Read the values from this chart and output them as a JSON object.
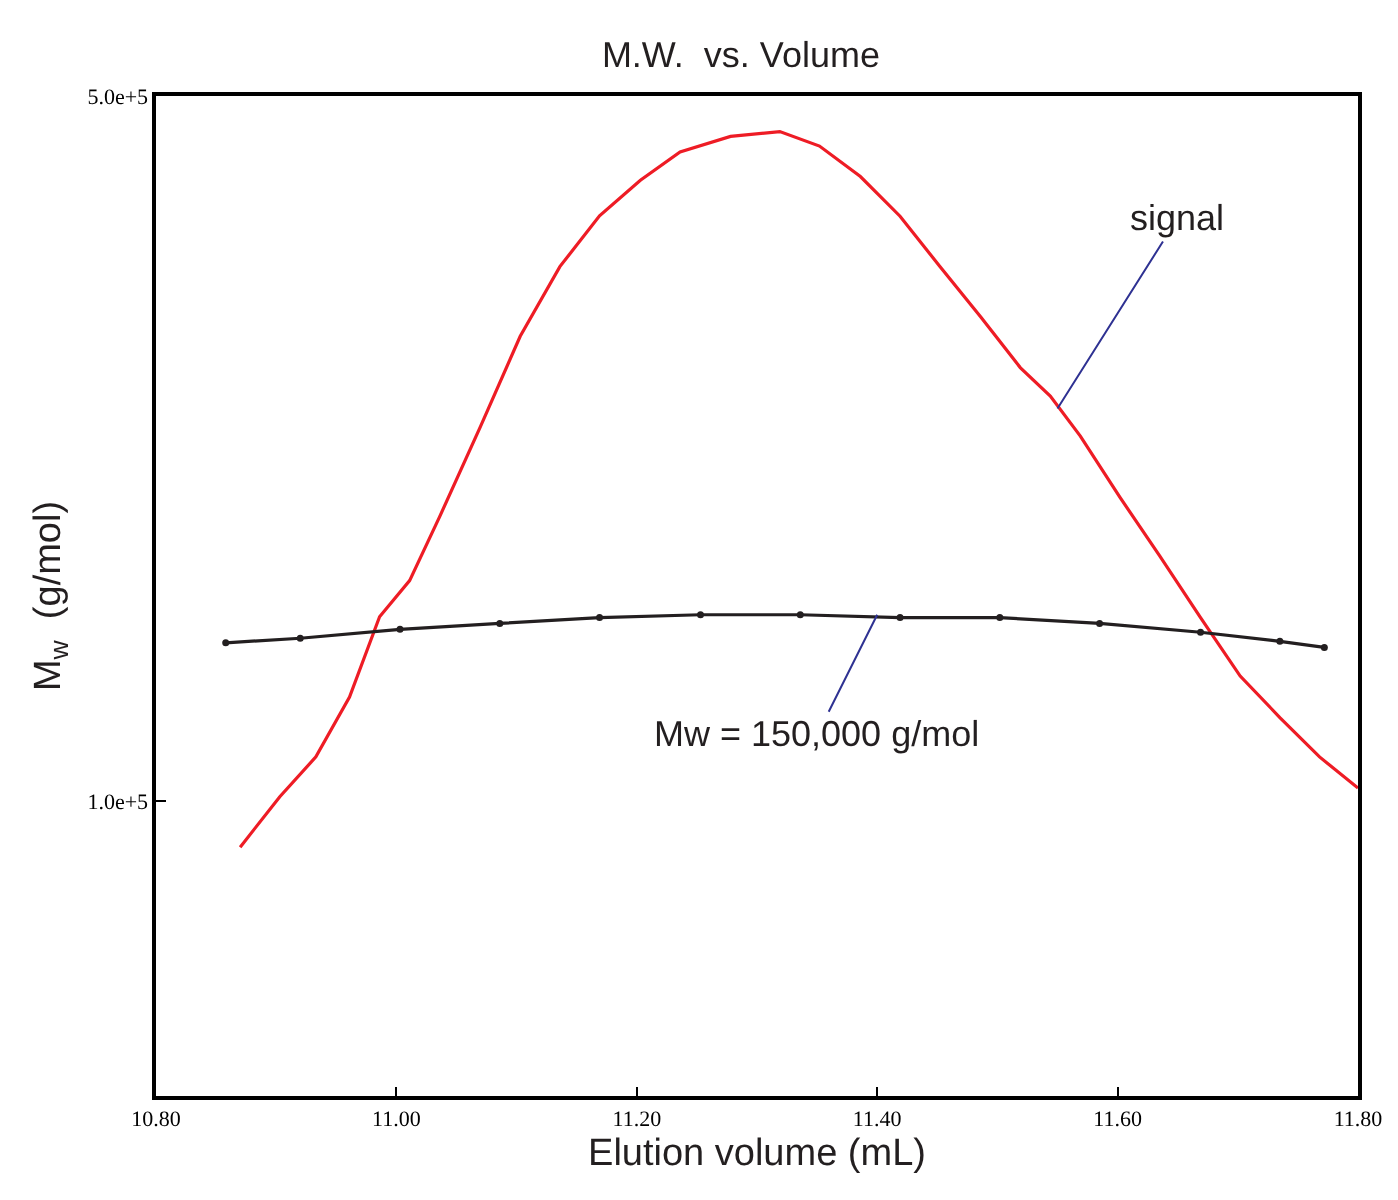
{
  "chart_data": {
    "type": "line",
    "title": "M.W.  vs. Volume",
    "xlabel": "Elution volume (mL)",
    "ylabel": "M$_{w}$  (g/mol)",
    "log": "y",
    "grid": false,
    "xlim": [
      10.8,
      11.8
    ],
    "xticks": [
      {
        "value": 10.8,
        "label": "10.80"
      },
      {
        "value": 11.0,
        "label": "11.00"
      },
      {
        "value": 11.2,
        "label": "11.20"
      },
      {
        "value": 11.4,
        "label": "11.40"
      },
      {
        "value": 11.6,
        "label": "11.60"
      },
      {
        "value": 11.8,
        "label": "11.80"
      }
    ],
    "ylim": [
      51000,
      500000
    ],
    "yticks": [
      {
        "value": 500000,
        "label": "5.0e+5"
      },
      {
        "value": 100000,
        "label": "1.0e+5"
      }
    ],
    "series": [
      {
        "color": "#ee1c25",
        "marker": "none",
        "x": [
          10.87,
          10.903,
          10.933,
          10.961,
          10.986,
          11.011,
          11.036,
          11.07,
          11.103,
          11.136,
          11.169,
          11.203,
          11.236,
          11.278,
          11.319,
          11.352,
          11.386,
          11.419,
          11.452,
          11.486,
          11.519,
          11.544,
          11.569,
          11.602,
          11.635,
          11.669,
          11.702,
          11.735,
          11.768,
          11.8
        ],
        "values": [
          90000,
          101000,
          110600,
          126800,
          152300,
          165400,
          191400,
          235200,
          288900,
          338700,
          380300,
          412500,
          440000,
          456000,
          461000,
          446000,
          416000,
          380000,
          339000,
          302000,
          269000,
          252000,
          230000,
          200000,
          175000,
          152000,
          133000,
          121000,
          110600,
          103000
        ]
      },
      {
        "color": "#231f20",
        "marker": "circle",
        "x": [
          10.858,
          10.92,
          11.003,
          11.086,
          11.169,
          11.253,
          11.336,
          11.419,
          11.502,
          11.585,
          11.669,
          11.735,
          11.772
        ],
        "values": [
          143500,
          145000,
          148000,
          150000,
          152000,
          153000,
          153000,
          152000,
          152000,
          150000,
          147000,
          144000,
          142000
        ]
      }
    ],
    "annotations": [
      {
        "text": "signal",
        "x": 11.55,
        "y": 245000
      },
      {
        "text": "Mw = 150,000 g/mol",
        "x": 11.4,
        "y": 153000
      }
    ]
  }
}
